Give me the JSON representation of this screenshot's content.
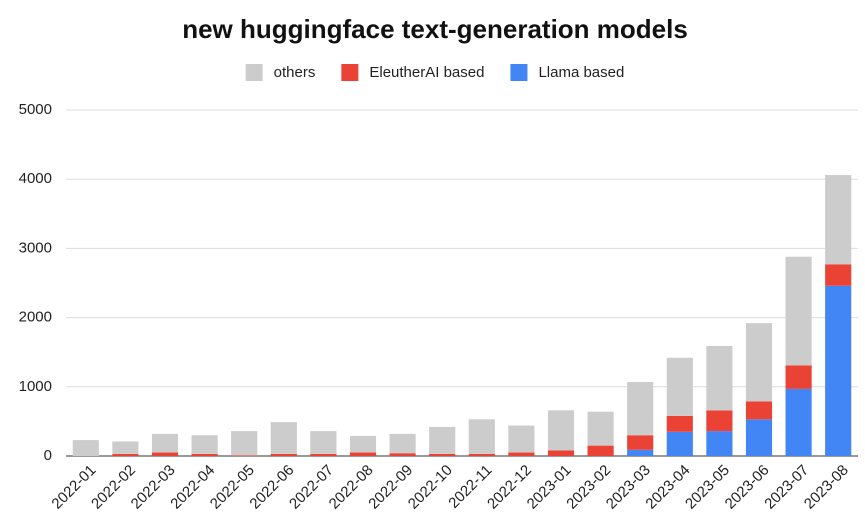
{
  "chart_data": {
    "type": "stacked_bar",
    "title": "new huggingface text-generation models",
    "categories": [
      "2022-01",
      "2022-02",
      "2022-03",
      "2022-04",
      "2022-05",
      "2022-06",
      "2022-07",
      "2022-08",
      "2022-09",
      "2022-10",
      "2022-11",
      "2022-12",
      "2023-01",
      "2023-02",
      "2023-03",
      "2023-04",
      "2023-05",
      "2023-06",
      "2023-07",
      "2023-08"
    ],
    "series": [
      {
        "name": "others",
        "color": "#cccccc",
        "values": [
          230,
          180,
          270,
          270,
          350,
          460,
          330,
          240,
          280,
          390,
          500,
          390,
          580,
          490,
          770,
          840,
          930,
          1130,
          1570,
          1290
        ]
      },
      {
        "name": "EleutherAI based",
        "color": "#ea4335",
        "values": [
          0,
          30,
          50,
          30,
          10,
          30,
          30,
          50,
          40,
          30,
          30,
          50,
          80,
          150,
          210,
          230,
          300,
          260,
          340,
          310
        ]
      },
      {
        "name": "Llama based",
        "color": "#4285f4",
        "values": [
          0,
          0,
          0,
          0,
          0,
          0,
          0,
          0,
          0,
          0,
          0,
          0,
          0,
          0,
          90,
          350,
          360,
          530,
          970,
          2460
        ]
      }
    ],
    "ylim": [
      0,
      5000
    ],
    "yticks": [
      0,
      1000,
      2000,
      3000,
      4000,
      5000
    ],
    "grid": true,
    "legend": "top"
  }
}
